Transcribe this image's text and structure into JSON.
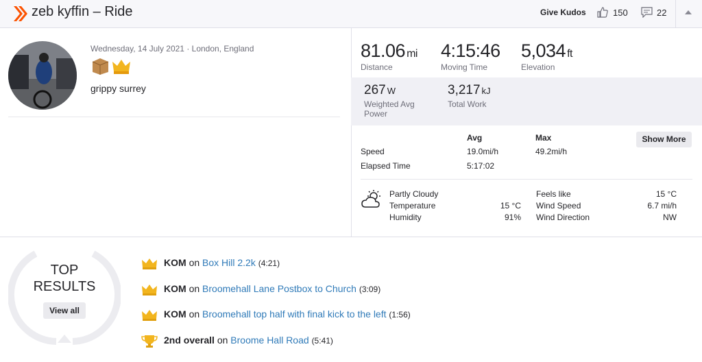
{
  "header": {
    "title": "zeb kyffin – Ride",
    "give_kudos": "Give Kudos",
    "kudos_count": 150,
    "comments_count": 22
  },
  "activity": {
    "date_location": "Wednesday, 14 July 2021 · London, England",
    "name": "grippy surrey"
  },
  "stats": {
    "primary": [
      {
        "value": "81.06",
        "unit": "mi",
        "label": "Distance"
      },
      {
        "value": "4:15:46",
        "label": "Moving Time"
      },
      {
        "value": "5,034",
        "unit": "ft",
        "label": "Elevation"
      }
    ],
    "secondary": [
      {
        "value": "267",
        "unit": "W",
        "label": "Weighted Avg Power"
      },
      {
        "value": "3,217",
        "unit": "kJ",
        "label": "Total Work"
      }
    ]
  },
  "more_stats": {
    "headers": [
      "Avg",
      "Max"
    ],
    "show_more": "Show More",
    "rows": [
      {
        "label": "Speed",
        "avg": "19.0mi/h",
        "max": "49.2mi/h"
      },
      {
        "label": "Elapsed Time",
        "avg": "5:17:02"
      }
    ]
  },
  "weather": {
    "condition": "Partly Cloudy",
    "left": [
      {
        "label": "Temperature",
        "value": "15 °C"
      },
      {
        "label": "Humidity",
        "value": "91%"
      }
    ],
    "right": [
      {
        "label": "Feels like",
        "value": "15 °C"
      },
      {
        "label": "Wind Speed",
        "value": "6.7 mi/h"
      },
      {
        "label": "Wind Direction",
        "value": "NW"
      }
    ]
  },
  "top_results": {
    "title_line1": "TOP",
    "title_line2": "RESULTS",
    "view_all": "View all",
    "items": [
      {
        "achievement": "KOM",
        "connector": "on",
        "segment": "Box Hill 2.2k",
        "time": "(4:21)"
      },
      {
        "achievement": "KOM",
        "connector": "on",
        "segment": "Broomehall Lane Postbox to Church",
        "time": "(3:09)"
      },
      {
        "achievement": "KOM",
        "connector": "on",
        "segment": "Broomehall top half with final kick to the left",
        "time": "(1:56)"
      },
      {
        "achievement": "2nd overall",
        "connector": "on",
        "segment": "Broome Hall Road",
        "time": "(5:41)"
      }
    ]
  }
}
